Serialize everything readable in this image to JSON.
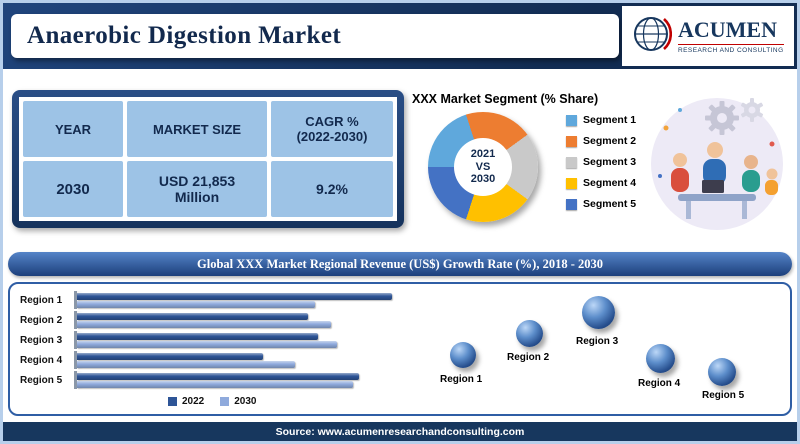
{
  "header": {
    "title": "Anaerobic Digestion Market",
    "logo": {
      "name": "ACUMEN",
      "tagline": "RESEARCH AND CONSULTING"
    }
  },
  "summary_table": {
    "headers": [
      "YEAR",
      "MARKET SIZE",
      "CAGR %\n(2022-2030)"
    ],
    "rows": [
      [
        "2030",
        "USD 21,853\nMillion",
        "9.2%"
      ]
    ]
  },
  "chart_data": [
    {
      "type": "pie",
      "subtype": "donut",
      "title": "XXX Market Segment (% Share)",
      "center_label": "2021\nVS\n2030",
      "labels": [
        "Segment 1",
        "Segment 2",
        "Segment 3",
        "Segment 4",
        "Segment 5"
      ],
      "values": [
        20,
        20,
        20,
        20,
        20
      ],
      "colors": [
        "#5fa8dc",
        "#ed7d31",
        "#c9c9c9",
        "#ffc000",
        "#4472c4"
      ],
      "legend_position": "right"
    },
    {
      "type": "bar",
      "orientation": "horizontal",
      "title": "Global XXX Market Regional Revenue (US$) Growth Rate (%), 2018 - 2030",
      "categories": [
        "Region 1",
        "Region 2",
        "Region 3",
        "Region 4",
        "Region 5"
      ],
      "series": [
        {
          "name": "2022",
          "color": "#2e5597",
          "values": [
            98,
            72,
            75,
            58,
            88
          ]
        },
        {
          "name": "2030",
          "color": "#8faadc",
          "values": [
            74,
            79,
            81,
            68,
            86
          ]
        }
      ],
      "xlim": [
        0,
        100
      ],
      "grid": false,
      "legend_position": "bottom"
    }
  ],
  "footer": {
    "source": "Source: www.acumenresearchandconsulting.com"
  }
}
